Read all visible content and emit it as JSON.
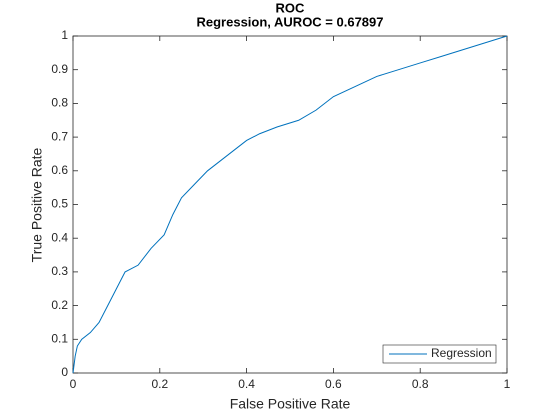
{
  "chart_data": {
    "type": "line",
    "title": "ROC",
    "subtitle": "Regression, AUROC = 0.67897",
    "x_label": "False Positive Rate",
    "y_label": "True Positive Rate",
    "x": [
      0,
      0.005,
      0.01,
      0.02,
      0.04,
      0.06,
      0.08,
      0.1,
      0.12,
      0.15,
      0.18,
      0.21,
      0.23,
      0.25,
      0.28,
      0.31,
      0.34,
      0.37,
      0.4,
      0.43,
      0.47,
      0.52,
      0.56,
      0.6,
      0.65,
      0.7,
      0.75,
      0.8,
      0.85,
      0.9,
      0.95,
      1
    ],
    "series": [
      {
        "name": "Regression",
        "color": "#0072bd",
        "values": [
          0,
          0.05,
          0.08,
          0.1,
          0.12,
          0.15,
          0.2,
          0.25,
          0.3,
          0.32,
          0.37,
          0.41,
          0.47,
          0.52,
          0.56,
          0.6,
          0.63,
          0.66,
          0.69,
          0.71,
          0.73,
          0.75,
          0.78,
          0.82,
          0.85,
          0.88,
          0.9,
          0.92,
          0.94,
          0.96,
          0.98,
          1
        ]
      }
    ],
    "xlim": [
      0,
      1
    ],
    "xticks": [
      0,
      0.2,
      0.4,
      0.6,
      0.8,
      1
    ],
    "ylim": [
      0,
      1
    ],
    "yticks": [
      0,
      0.1,
      0.2,
      0.3,
      0.4,
      0.5,
      0.6,
      0.7,
      0.8,
      0.9,
      1
    ],
    "legend": "southeast"
  }
}
